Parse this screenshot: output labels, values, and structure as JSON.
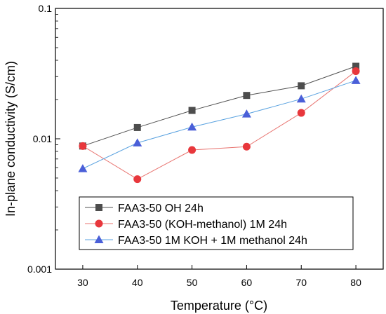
{
  "chart_data": {
    "type": "line",
    "xlabel": "Temperature (°C)",
    "ylabel": "In-plane conductivity (S/cm)",
    "x": [
      30,
      40,
      50,
      60,
      70,
      80
    ],
    "xlim": [
      25,
      85
    ],
    "ylim": [
      0.001,
      0.1
    ],
    "y_scale": "log",
    "x_ticks": [
      "30",
      "40",
      "50",
      "60",
      "70",
      "80"
    ],
    "y_ticks": [
      {
        "value": 0.001,
        "label": "0.001"
      },
      {
        "value": 0.01,
        "label": "0.01"
      },
      {
        "value": 0.1,
        "label": "0.1"
      }
    ],
    "grid": false,
    "legend_position": "bottom-right",
    "series": [
      {
        "name": "FAA3-50 OH 24h",
        "marker": "square",
        "color": "#505050",
        "marker_color": "#4d4d4d",
        "values": [
          0.0088,
          0.0122,
          0.0165,
          0.0215,
          0.0255,
          0.036
        ]
      },
      {
        "name": "FAA3-50 (KOH-methanol) 1M 24h",
        "marker": "circle",
        "color": "#e8736f",
        "marker_color": "#e8373c",
        "values": [
          0.0088,
          0.0049,
          0.0082,
          0.0087,
          0.0158,
          0.033
        ]
      },
      {
        "name": "FAA3-50 1M KOH + 1M methanol 24h",
        "marker": "triangle",
        "color": "#5aa2e0",
        "marker_color": "#4a5fd8",
        "values": [
          0.0059,
          0.0093,
          0.0123,
          0.0155,
          0.0202,
          0.028
        ]
      }
    ]
  }
}
